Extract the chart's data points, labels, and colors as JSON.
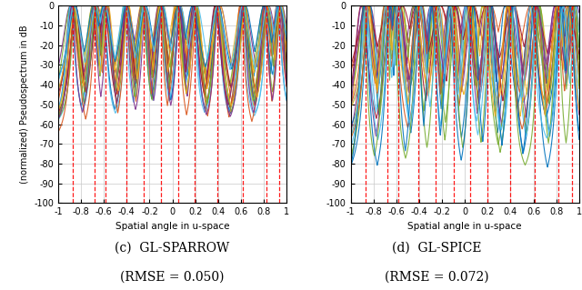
{
  "xlim": [
    -1,
    1
  ],
  "ylim": [
    -100,
    0
  ],
  "xlabel": "Spatial angle in u-space",
  "ylabel": "(normalized) Pseudospectrum in dB",
  "yticks": [
    0,
    -10,
    -20,
    -30,
    -40,
    -50,
    -60,
    -70,
    -80,
    -90,
    -100
  ],
  "xticks": [
    -1,
    -0.8,
    -0.6,
    -0.4,
    -0.2,
    0,
    0.2,
    0.4,
    0.6,
    0.8,
    1
  ],
  "xtick_labels": [
    "-1",
    "-0.8",
    "-0.6",
    "-0.4",
    "-0.2",
    "0",
    "0.2",
    "0.4",
    "0.6",
    "0.8",
    "1"
  ],
  "true_doas": [
    -0.87,
    -0.68,
    -0.585,
    -0.405,
    -0.255,
    -0.1,
    0.05,
    0.195,
    0.395,
    0.615,
    0.82,
    0.935
  ],
  "subplot_labels": [
    "(c)  GL-SPARROW",
    "(d)  GL-SPICE"
  ],
  "subplot_rmse": [
    "(RMSE = 0.050)",
    "(RMSE = 0.072)"
  ],
  "mc_colors": [
    "#0072BD",
    "#D95319",
    "#EDB120",
    "#7E2F8E",
    "#77AC30",
    "#4DBEEE",
    "#A2142F",
    "#0072BD",
    "#D95319",
    "#EDB120",
    "#7E2F8E",
    "#77AC30",
    "#4DBEEE",
    "#A2142F",
    "#D95319",
    "#77AC30",
    "#7E2F8E",
    "#EDB120",
    "#0072BD",
    "#4DBEEE"
  ],
  "line_width": 0.8,
  "n_mc": 20,
  "background_color": "#ffffff",
  "grid_color": "#c8c8c8"
}
